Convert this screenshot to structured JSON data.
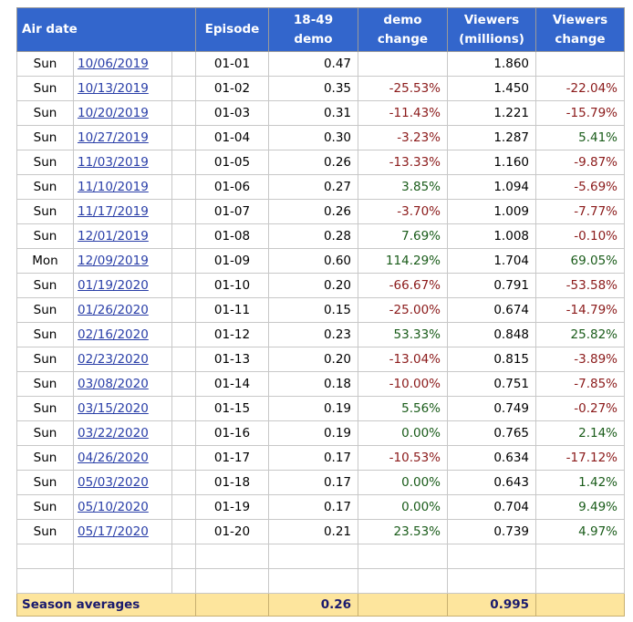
{
  "headers": {
    "air_date": "Air date",
    "episode": "Episode",
    "demo_line1": "18-49",
    "demo_line2": "demo",
    "demo_change_line1": "demo",
    "demo_change_line2": "change",
    "viewers_line1": "Viewers",
    "viewers_line2": "(millions)",
    "viewers_change_line1": "Viewers",
    "viewers_change_line2": "change"
  },
  "rows": [
    {
      "day": "Sun",
      "date": "10/06/2019",
      "episode": "01-01",
      "demo": "0.47",
      "demo_change": "",
      "viewers": "1.860",
      "viewers_change": ""
    },
    {
      "day": "Sun",
      "date": "10/13/2019",
      "episode": "01-02",
      "demo": "0.35",
      "demo_change": "-25.53%",
      "viewers": "1.450",
      "viewers_change": "-22.04%"
    },
    {
      "day": "Sun",
      "date": "10/20/2019",
      "episode": "01-03",
      "demo": "0.31",
      "demo_change": "-11.43%",
      "viewers": "1.221",
      "viewers_change": "-15.79%"
    },
    {
      "day": "Sun",
      "date": "10/27/2019",
      "episode": "01-04",
      "demo": "0.30",
      "demo_change": "-3.23%",
      "viewers": "1.287",
      "viewers_change": "5.41%"
    },
    {
      "day": "Sun",
      "date": "11/03/2019",
      "episode": "01-05",
      "demo": "0.26",
      "demo_change": "-13.33%",
      "viewers": "1.160",
      "viewers_change": "-9.87%"
    },
    {
      "day": "Sun",
      "date": "11/10/2019",
      "episode": "01-06",
      "demo": "0.27",
      "demo_change": "3.85%",
      "viewers": "1.094",
      "viewers_change": "-5.69%"
    },
    {
      "day": "Sun",
      "date": "11/17/2019",
      "episode": "01-07",
      "demo": "0.26",
      "demo_change": "-3.70%",
      "viewers": "1.009",
      "viewers_change": "-7.77%"
    },
    {
      "day": "Sun",
      "date": "12/01/2019",
      "episode": "01-08",
      "demo": "0.28",
      "demo_change": "7.69%",
      "viewers": "1.008",
      "viewers_change": "-0.10%"
    },
    {
      "day": "Mon",
      "date": "12/09/2019",
      "episode": "01-09",
      "demo": "0.60",
      "demo_change": "114.29%",
      "viewers": "1.704",
      "viewers_change": "69.05%"
    },
    {
      "day": "Sun",
      "date": "01/19/2020",
      "episode": "01-10",
      "demo": "0.20",
      "demo_change": "-66.67%",
      "viewers": "0.791",
      "viewers_change": "-53.58%"
    },
    {
      "day": "Sun",
      "date": "01/26/2020",
      "episode": "01-11",
      "demo": "0.15",
      "demo_change": "-25.00%",
      "viewers": "0.674",
      "viewers_change": "-14.79%"
    },
    {
      "day": "Sun",
      "date": "02/16/2020",
      "episode": "01-12",
      "demo": "0.23",
      "demo_change": "53.33%",
      "viewers": "0.848",
      "viewers_change": "25.82%"
    },
    {
      "day": "Sun",
      "date": "02/23/2020",
      "episode": "01-13",
      "demo": "0.20",
      "demo_change": "-13.04%",
      "viewers": "0.815",
      "viewers_change": "-3.89%"
    },
    {
      "day": "Sun",
      "date": "03/08/2020",
      "episode": "01-14",
      "demo": "0.18",
      "demo_change": "-10.00%",
      "viewers": "0.751",
      "viewers_change": "-7.85%"
    },
    {
      "day": "Sun",
      "date": "03/15/2020",
      "episode": "01-15",
      "demo": "0.19",
      "demo_change": "5.56%",
      "viewers": "0.749",
      "viewers_change": "-0.27%"
    },
    {
      "day": "Sun",
      "date": "03/22/2020",
      "episode": "01-16",
      "demo": "0.19",
      "demo_change": "0.00%",
      "viewers": "0.765",
      "viewers_change": "2.14%"
    },
    {
      "day": "Sun",
      "date": "04/26/2020",
      "episode": "01-17",
      "demo": "0.17",
      "demo_change": "-10.53%",
      "viewers": "0.634",
      "viewers_change": "-17.12%"
    },
    {
      "day": "Sun",
      "date": "05/03/2020",
      "episode": "01-18",
      "demo": "0.17",
      "demo_change": "0.00%",
      "viewers": "0.643",
      "viewers_change": "1.42%"
    },
    {
      "day": "Sun",
      "date": "05/10/2020",
      "episode": "01-19",
      "demo": "0.17",
      "demo_change": "0.00%",
      "viewers": "0.704",
      "viewers_change": "9.49%"
    },
    {
      "day": "Sun",
      "date": "05/17/2020",
      "episode": "01-20",
      "demo": "0.21",
      "demo_change": "23.53%",
      "viewers": "0.739",
      "viewers_change": "4.97%"
    }
  ],
  "footer": {
    "label": "Season averages",
    "avg_demo": "0.26",
    "avg_viewers": "0.995"
  },
  "colors": {
    "header_bg": "#3366cc",
    "header_text": "#ffffff",
    "footer_bg": "#fde59d",
    "link": "#2a3fa8",
    "negative": "#8b1a1a",
    "positive": "#1a5c1a"
  }
}
